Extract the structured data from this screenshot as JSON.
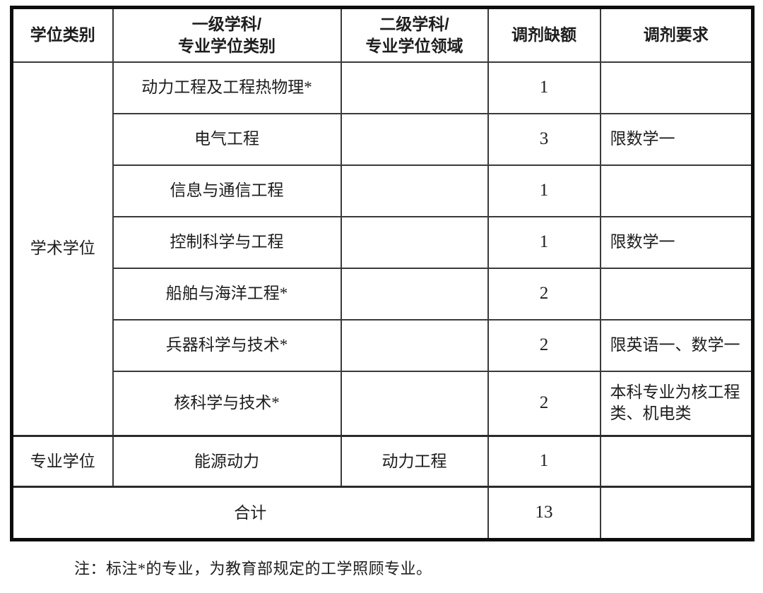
{
  "table": {
    "header": {
      "degree_category": "学位类别",
      "first_level_line1": "一级学科/",
      "first_level_line2": "专业学位类别",
      "second_level_line1": "二级学科/",
      "second_level_line2": "专业学位领域",
      "vacancy": "调剂缺额",
      "requirement": "调剂要求"
    },
    "academic": {
      "category": "学术学位",
      "rows": [
        {
          "discipline": "动力工程及工程热物理*",
          "field": "",
          "vacancy": "1",
          "requirement": ""
        },
        {
          "discipline": "电气工程",
          "field": "",
          "vacancy": "3",
          "requirement": "限数学一"
        },
        {
          "discipline": "信息与通信工程",
          "field": "",
          "vacancy": "1",
          "requirement": ""
        },
        {
          "discipline": "控制科学与工程",
          "field": "",
          "vacancy": "1",
          "requirement": "限数学一"
        },
        {
          "discipline": "船舶与海洋工程*",
          "field": "",
          "vacancy": "2",
          "requirement": ""
        },
        {
          "discipline": "兵器科学与技术*",
          "field": "",
          "vacancy": "2",
          "requirement": "限英语一、数学一"
        },
        {
          "discipline": "核科学与技术*",
          "field": "",
          "vacancy": "2",
          "requirement": "本科专业为核工程类、机电类"
        }
      ]
    },
    "professional": {
      "category": "专业学位",
      "discipline": "能源动力",
      "field": "动力工程",
      "vacancy": "1",
      "requirement": ""
    },
    "total": {
      "label": "合计",
      "vacancy": "13",
      "requirement": ""
    }
  },
  "footnote": "注：标注*的专业，为教育部规定的工学照顾专业。"
}
